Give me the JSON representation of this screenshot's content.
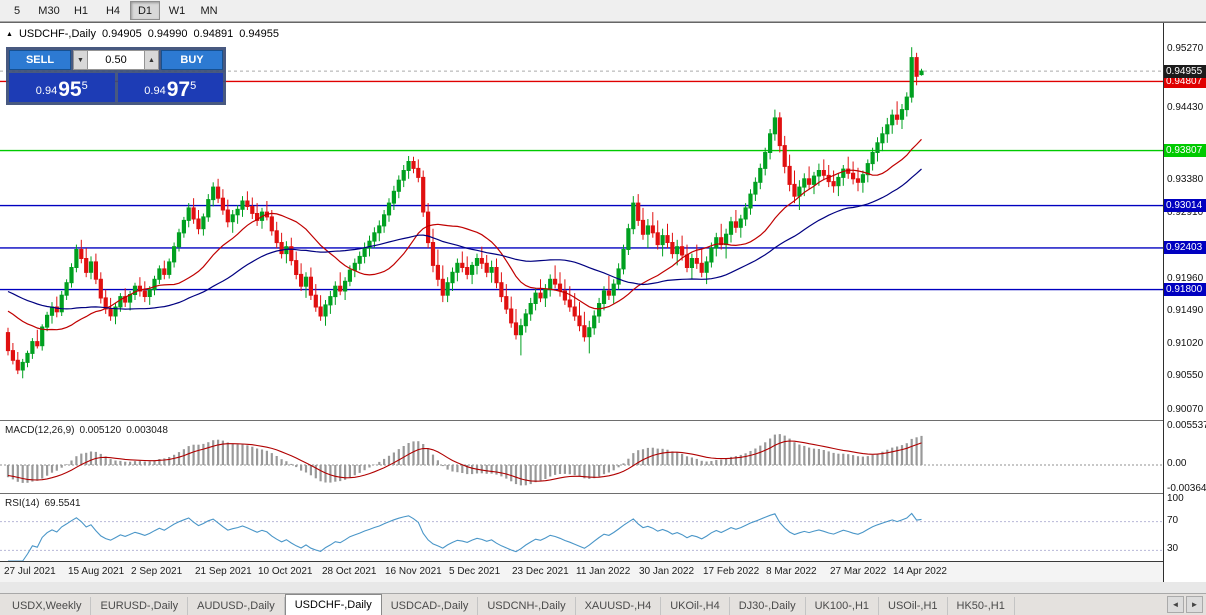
{
  "toolbar": {
    "periods": [
      {
        "label": "5",
        "active": false
      },
      {
        "label": "M30",
        "active": false
      },
      {
        "label": "H1",
        "active": false
      },
      {
        "label": "H4",
        "active": false
      },
      {
        "label": "D1",
        "active": true
      },
      {
        "label": "W1",
        "active": false
      },
      {
        "label": "MN",
        "active": false
      }
    ]
  },
  "chart": {
    "title": {
      "symbol": "USDCHF-,Daily",
      "open": "0.94905",
      "high": "0.94990",
      "low": "0.94891",
      "close": "0.94955"
    },
    "window_icon": "▲",
    "trade_panel": {
      "sell_label": "SELL",
      "buy_label": "BUY",
      "volume": "0.50",
      "down_icon": "▼",
      "up_icon": "▲",
      "sell_price": {
        "prefix": "0.94",
        "big": "95",
        "pip": "5"
      },
      "buy_price": {
        "prefix": "0.94",
        "big": "97",
        "pip": "5"
      }
    },
    "bull_color": "#00a020",
    "bear_color": "#e01010",
    "ma_fast_color": "#c00000",
    "ma_slow_color": "#000080",
    "lines": [
      {
        "price": 0.94807,
        "color": "#e00000",
        "label": "0.94807"
      },
      {
        "price": 0.93807,
        "color": "#00ca00",
        "label": "0.93807"
      },
      {
        "price": 0.93014,
        "color": "#0000c0",
        "label": "0.93014"
      },
      {
        "price": 0.92403,
        "color": "#0000c0",
        "label": "0.92403"
      },
      {
        "price": 0.918,
        "color": "#0000c0",
        "label": "0.91800"
      }
    ],
    "current_price": {
      "label": "0.94955",
      "value": 0.94955,
      "bg": "#1c1c1c"
    },
    "axis_plain": [
      "0.95270",
      "0.94430",
      "0.93380",
      "0.92910",
      "0.91960",
      "0.91490",
      "0.91020",
      "0.90550",
      "0.90070"
    ]
  },
  "macd": {
    "name": "MACD(12,26,9)",
    "main_value": "0.005120",
    "signal_value": "0.003048",
    "bar_color": "#999999",
    "signal_color": "#b00000",
    "axis": [
      {
        "v": 0.005537,
        "label": "0.005537"
      },
      {
        "v": 0.0,
        "label": "0.00"
      },
      {
        "v": -0.003645,
        "label": "-0.003645"
      }
    ]
  },
  "rsi": {
    "name": "RSI(14)",
    "value": "69.5541",
    "line_color": "#4a96c8",
    "levels": [
      70,
      30
    ],
    "axis": [
      {
        "v": 100,
        "label": "100"
      },
      {
        "v": 70,
        "label": "70"
      },
      {
        "v": 30,
        "label": "30"
      }
    ]
  },
  "date_axis": {
    "labels": [
      {
        "i": 0,
        "t": "27 Jul 2021"
      },
      {
        "i": 13,
        "t": "15 Aug 2021"
      },
      {
        "i": 26,
        "t": "2 Sep 2021"
      },
      {
        "i": 39,
        "t": "21 Sep 2021"
      },
      {
        "i": 52,
        "t": "10 Oct 2021"
      },
      {
        "i": 65,
        "t": "28 Oct 2021"
      },
      {
        "i": 78,
        "t": "16 Nov 2021"
      },
      {
        "i": 91,
        "t": "5 Dec 2021"
      },
      {
        "i": 104,
        "t": "23 Dec 2021"
      },
      {
        "i": 117,
        "t": "11 Jan 2022"
      },
      {
        "i": 130,
        "t": "30 Jan 2022"
      },
      {
        "i": 143,
        "t": "17 Feb 2022"
      },
      {
        "i": 156,
        "t": "8 Mar 2022"
      },
      {
        "i": 169,
        "t": "27 Mar 2022"
      },
      {
        "i": 182,
        "t": "14 Apr 2022"
      }
    ]
  },
  "tabs": {
    "items": [
      "USDX,Weekly",
      "EURUSD-,Daily",
      "AUDUSD-,Daily",
      "USDCHF-,Daily",
      "USDCAD-,Daily",
      "USDCNH-,Daily",
      "XAUUSD-,H4",
      "UKOil-,H4",
      "DJ30-,Daily",
      "UK100-,H1",
      "USOil-,H1",
      "HK50-,H1"
    ],
    "active_index": 3,
    "scroll_left_icon": "◄",
    "scroll_right_icon": "►"
  },
  "chart_data": {
    "type": "candlestick",
    "symbol": "USDCHF-",
    "timeframe": "Daily",
    "price_axis_visible_range": [
      0.9,
      0.954
    ],
    "ohlc": [
      [
        0.9118,
        0.9125,
        0.9085,
        0.9092
      ],
      [
        0.9092,
        0.9103,
        0.9072,
        0.9078
      ],
      [
        0.9078,
        0.909,
        0.9058,
        0.9064
      ],
      [
        0.9064,
        0.908,
        0.9052,
        0.9075
      ],
      [
        0.9075,
        0.9092,
        0.9068,
        0.9088
      ],
      [
        0.9088,
        0.911,
        0.908,
        0.9105
      ],
      [
        0.9105,
        0.9122,
        0.9095,
        0.9099
      ],
      [
        0.9099,
        0.913,
        0.9092,
        0.9126
      ],
      [
        0.9126,
        0.9148,
        0.912,
        0.9143
      ],
      [
        0.9143,
        0.9162,
        0.9131,
        0.9155
      ],
      [
        0.9155,
        0.917,
        0.914,
        0.9148
      ],
      [
        0.9148,
        0.9178,
        0.9142,
        0.9172
      ],
      [
        0.9172,
        0.9195,
        0.9165,
        0.919
      ],
      [
        0.919,
        0.9218,
        0.9183,
        0.9212
      ],
      [
        0.9212,
        0.9245,
        0.9205,
        0.9238
      ],
      [
        0.9238,
        0.9252,
        0.9218,
        0.9225
      ],
      [
        0.9225,
        0.924,
        0.9198,
        0.9205
      ],
      [
        0.9205,
        0.9228,
        0.9195,
        0.922
      ],
      [
        0.922,
        0.9232,
        0.9188,
        0.9195
      ],
      [
        0.9195,
        0.9205,
        0.916,
        0.9168
      ],
      [
        0.9168,
        0.918,
        0.9145,
        0.9152
      ],
      [
        0.9152,
        0.9168,
        0.9135,
        0.9142
      ],
      [
        0.9142,
        0.916,
        0.913,
        0.9155
      ],
      [
        0.9155,
        0.9175,
        0.9148,
        0.917
      ],
      [
        0.917,
        0.9182,
        0.9155,
        0.9162
      ],
      [
        0.9162,
        0.9178,
        0.915,
        0.9173
      ],
      [
        0.9173,
        0.919,
        0.9165,
        0.9185
      ],
      [
        0.9185,
        0.9198,
        0.917,
        0.9178
      ],
      [
        0.9178,
        0.9192,
        0.9162,
        0.917
      ],
      [
        0.917,
        0.9185,
        0.9158,
        0.918
      ],
      [
        0.918,
        0.92,
        0.9172,
        0.9195
      ],
      [
        0.9195,
        0.9215,
        0.9188,
        0.921
      ],
      [
        0.921,
        0.9222,
        0.9195,
        0.9202
      ],
      [
        0.9202,
        0.9225,
        0.9196,
        0.922
      ],
      [
        0.922,
        0.9248,
        0.9212,
        0.9242
      ],
      [
        0.9242,
        0.9268,
        0.9235,
        0.9262
      ],
      [
        0.9262,
        0.9285,
        0.9255,
        0.928
      ],
      [
        0.928,
        0.9305,
        0.927,
        0.9298
      ],
      [
        0.9298,
        0.9312,
        0.9275,
        0.9282
      ],
      [
        0.9282,
        0.9295,
        0.926,
        0.9268
      ],
      [
        0.9268,
        0.929,
        0.9258,
        0.9285
      ],
      [
        0.9285,
        0.9318,
        0.9278,
        0.931
      ],
      [
        0.931,
        0.9335,
        0.93,
        0.9328
      ],
      [
        0.9328,
        0.934,
        0.9305,
        0.9312
      ],
      [
        0.9312,
        0.9325,
        0.9288,
        0.9295
      ],
      [
        0.9295,
        0.931,
        0.927,
        0.9278
      ],
      [
        0.9278,
        0.9295,
        0.9262,
        0.9288
      ],
      [
        0.9288,
        0.9302,
        0.9275,
        0.9296
      ],
      [
        0.9296,
        0.9315,
        0.9285,
        0.9308
      ],
      [
        0.9308,
        0.9322,
        0.9295,
        0.93
      ],
      [
        0.93,
        0.9313,
        0.9282,
        0.929
      ],
      [
        0.929,
        0.9305,
        0.9272,
        0.928
      ],
      [
        0.928,
        0.9298,
        0.9268,
        0.9292
      ],
      [
        0.9292,
        0.9308,
        0.928,
        0.9285
      ],
      [
        0.9285,
        0.9295,
        0.9258,
        0.9265
      ],
      [
        0.9265,
        0.9278,
        0.924,
        0.9248
      ],
      [
        0.9248,
        0.9262,
        0.9225,
        0.9232
      ],
      [
        0.9232,
        0.925,
        0.9218,
        0.9242
      ],
      [
        0.9242,
        0.9255,
        0.9215,
        0.9222
      ],
      [
        0.9222,
        0.9235,
        0.9195,
        0.9202
      ],
      [
        0.9202,
        0.9218,
        0.9178,
        0.9185
      ],
      [
        0.9185,
        0.9205,
        0.9168,
        0.9198
      ],
      [
        0.9198,
        0.9212,
        0.9165,
        0.9172
      ],
      [
        0.9172,
        0.9188,
        0.9148,
        0.9155
      ],
      [
        0.9155,
        0.9172,
        0.9135,
        0.9142
      ],
      [
        0.9142,
        0.9165,
        0.9128,
        0.9158
      ],
      [
        0.9158,
        0.9178,
        0.9145,
        0.917
      ],
      [
        0.917,
        0.9192,
        0.9158,
        0.9185
      ],
      [
        0.9185,
        0.9205,
        0.9172,
        0.9178
      ],
      [
        0.9178,
        0.9198,
        0.9165,
        0.9192
      ],
      [
        0.9192,
        0.9215,
        0.9185,
        0.9208
      ],
      [
        0.9208,
        0.9225,
        0.9198,
        0.9218
      ],
      [
        0.9218,
        0.9235,
        0.9208,
        0.9228
      ],
      [
        0.9228,
        0.9248,
        0.9218,
        0.924
      ],
      [
        0.924,
        0.9258,
        0.9228,
        0.925
      ],
      [
        0.925,
        0.927,
        0.924,
        0.9262
      ],
      [
        0.9262,
        0.928,
        0.925,
        0.9272
      ],
      [
        0.9272,
        0.9295,
        0.9262,
        0.9288
      ],
      [
        0.9288,
        0.9312,
        0.9278,
        0.9305
      ],
      [
        0.9305,
        0.933,
        0.9295,
        0.9322
      ],
      [
        0.9322,
        0.9345,
        0.9312,
        0.9338
      ],
      [
        0.9338,
        0.936,
        0.9328,
        0.9352
      ],
      [
        0.9352,
        0.9373,
        0.934,
        0.9365
      ],
      [
        0.9365,
        0.9372,
        0.9348,
        0.9355
      ],
      [
        0.9355,
        0.9368,
        0.9335,
        0.9342
      ],
      [
        0.9342,
        0.9352,
        0.9285,
        0.9292
      ],
      [
        0.9292,
        0.9305,
        0.924,
        0.9248
      ],
      [
        0.9248,
        0.9268,
        0.9205,
        0.9215
      ],
      [
        0.9215,
        0.9238,
        0.9185,
        0.9195
      ],
      [
        0.9195,
        0.9215,
        0.9162,
        0.9172
      ],
      [
        0.9172,
        0.9198,
        0.9162,
        0.919
      ],
      [
        0.919,
        0.9212,
        0.9178,
        0.9205
      ],
      [
        0.9205,
        0.9225,
        0.9192,
        0.9218
      ],
      [
        0.9218,
        0.9235,
        0.9205,
        0.9212
      ],
      [
        0.9212,
        0.9228,
        0.9195,
        0.9202
      ],
      [
        0.9202,
        0.922,
        0.9188,
        0.9215
      ],
      [
        0.9215,
        0.9232,
        0.9202,
        0.9225
      ],
      [
        0.9225,
        0.9242,
        0.921,
        0.9218
      ],
      [
        0.9218,
        0.923,
        0.9198,
        0.9205
      ],
      [
        0.9205,
        0.9222,
        0.919,
        0.9212
      ],
      [
        0.9212,
        0.9225,
        0.9182,
        0.919
      ],
      [
        0.919,
        0.9205,
        0.9162,
        0.917
      ],
      [
        0.917,
        0.9188,
        0.9145,
        0.9152
      ],
      [
        0.9152,
        0.917,
        0.9125,
        0.9132
      ],
      [
        0.9132,
        0.9152,
        0.9108,
        0.9115
      ],
      [
        0.9115,
        0.9138,
        0.9085,
        0.9128
      ],
      [
        0.9128,
        0.9152,
        0.9118,
        0.9145
      ],
      [
        0.9145,
        0.9168,
        0.9135,
        0.916
      ],
      [
        0.916,
        0.9182,
        0.915,
        0.9175
      ],
      [
        0.9175,
        0.9195,
        0.9162,
        0.9168
      ],
      [
        0.9168,
        0.9188,
        0.9155,
        0.918
      ],
      [
        0.918,
        0.9202,
        0.917,
        0.9195
      ],
      [
        0.9195,
        0.9215,
        0.9182,
        0.9188
      ],
      [
        0.9188,
        0.9205,
        0.917,
        0.9178
      ],
      [
        0.9178,
        0.9195,
        0.9158,
        0.9165
      ],
      [
        0.9165,
        0.9185,
        0.9148,
        0.9155
      ],
      [
        0.9155,
        0.9175,
        0.9135,
        0.9142
      ],
      [
        0.9142,
        0.9162,
        0.912,
        0.9128
      ],
      [
        0.9128,
        0.9148,
        0.9105,
        0.9112
      ],
      [
        0.9112,
        0.9135,
        0.9088,
        0.9125
      ],
      [
        0.9125,
        0.915,
        0.9115,
        0.9142
      ],
      [
        0.9142,
        0.9168,
        0.9132,
        0.916
      ],
      [
        0.916,
        0.9185,
        0.915,
        0.9178
      ],
      [
        0.9178,
        0.92,
        0.9165,
        0.9172
      ],
      [
        0.9172,
        0.9195,
        0.916,
        0.9188
      ],
      [
        0.9188,
        0.9218,
        0.918,
        0.921
      ],
      [
        0.921,
        0.9245,
        0.9202,
        0.9238
      ],
      [
        0.9238,
        0.9275,
        0.923,
        0.9268
      ],
      [
        0.9268,
        0.9315,
        0.926,
        0.9305
      ],
      [
        0.9305,
        0.9318,
        0.9272,
        0.928
      ],
      [
        0.928,
        0.9298,
        0.9252,
        0.926
      ],
      [
        0.926,
        0.9282,
        0.924,
        0.9272
      ],
      [
        0.9272,
        0.9292,
        0.9255,
        0.9262
      ],
      [
        0.9262,
        0.928,
        0.9238,
        0.9245
      ],
      [
        0.9245,
        0.9268,
        0.9228,
        0.9258
      ],
      [
        0.9258,
        0.9275,
        0.924,
        0.9248
      ],
      [
        0.9248,
        0.9262,
        0.9225,
        0.9232
      ],
      [
        0.9232,
        0.9252,
        0.9215,
        0.9242
      ],
      [
        0.9242,
        0.9258,
        0.9222,
        0.923
      ],
      [
        0.923,
        0.9245,
        0.9205,
        0.9212
      ],
      [
        0.9212,
        0.9232,
        0.9195,
        0.9225
      ],
      [
        0.9225,
        0.9245,
        0.921,
        0.9218
      ],
      [
        0.9218,
        0.9238,
        0.9198,
        0.9205
      ],
      [
        0.9205,
        0.9228,
        0.9188,
        0.922
      ],
      [
        0.922,
        0.9248,
        0.9212,
        0.924
      ],
      [
        0.924,
        0.9262,
        0.9228,
        0.9255
      ],
      [
        0.9255,
        0.9275,
        0.9238,
        0.9245
      ],
      [
        0.9245,
        0.9268,
        0.9225,
        0.926
      ],
      [
        0.926,
        0.9285,
        0.9248,
        0.9278
      ],
      [
        0.9278,
        0.9295,
        0.9262,
        0.927
      ],
      [
        0.927,
        0.9288,
        0.9255,
        0.9282
      ],
      [
        0.9282,
        0.9305,
        0.9272,
        0.9298
      ],
      [
        0.9298,
        0.9325,
        0.9288,
        0.9318
      ],
      [
        0.9318,
        0.9342,
        0.9308,
        0.9335
      ],
      [
        0.9335,
        0.9362,
        0.9325,
        0.9355
      ],
      [
        0.9355,
        0.9385,
        0.9345,
        0.9378
      ],
      [
        0.9378,
        0.9412,
        0.9368,
        0.9405
      ],
      [
        0.9405,
        0.944,
        0.9395,
        0.9428
      ],
      [
        0.9428,
        0.9436,
        0.9378,
        0.9388
      ],
      [
        0.9388,
        0.9402,
        0.9348,
        0.9358
      ],
      [
        0.9358,
        0.9375,
        0.9322,
        0.9332
      ],
      [
        0.9332,
        0.9352,
        0.9305,
        0.9315
      ],
      [
        0.9315,
        0.9338,
        0.9295,
        0.9328
      ],
      [
        0.9328,
        0.9348,
        0.9315,
        0.934
      ],
      [
        0.934,
        0.9358,
        0.9325,
        0.9332
      ],
      [
        0.9332,
        0.935,
        0.9318,
        0.9344
      ],
      [
        0.9344,
        0.9362,
        0.933,
        0.9352
      ],
      [
        0.9352,
        0.9368,
        0.9338,
        0.9345
      ],
      [
        0.9345,
        0.936,
        0.9328,
        0.9336
      ],
      [
        0.9336,
        0.9352,
        0.932,
        0.933
      ],
      [
        0.933,
        0.9348,
        0.9315,
        0.9342
      ],
      [
        0.9342,
        0.936,
        0.933,
        0.9354
      ],
      [
        0.9354,
        0.9372,
        0.934,
        0.9348
      ],
      [
        0.9348,
        0.9365,
        0.9332,
        0.934
      ],
      [
        0.934,
        0.9356,
        0.9322,
        0.9335
      ],
      [
        0.9335,
        0.9352,
        0.932,
        0.9346
      ],
      [
        0.9346,
        0.9368,
        0.9335,
        0.9362
      ],
      [
        0.9362,
        0.9385,
        0.9352,
        0.9378
      ],
      [
        0.9378,
        0.94,
        0.9365,
        0.9392
      ],
      [
        0.9392,
        0.9415,
        0.938,
        0.9405
      ],
      [
        0.9405,
        0.9428,
        0.9392,
        0.9418
      ],
      [
        0.9418,
        0.944,
        0.9405,
        0.9432
      ],
      [
        0.9432,
        0.9452,
        0.9418,
        0.9426
      ],
      [
        0.9426,
        0.9448,
        0.9412,
        0.944
      ],
      [
        0.944,
        0.9465,
        0.943,
        0.9458
      ],
      [
        0.9458,
        0.953,
        0.945,
        0.9515
      ],
      [
        0.9515,
        0.9522,
        0.9475,
        0.9488
      ],
      [
        0.94905,
        0.9499,
        0.94891,
        0.94955
      ]
    ]
  }
}
